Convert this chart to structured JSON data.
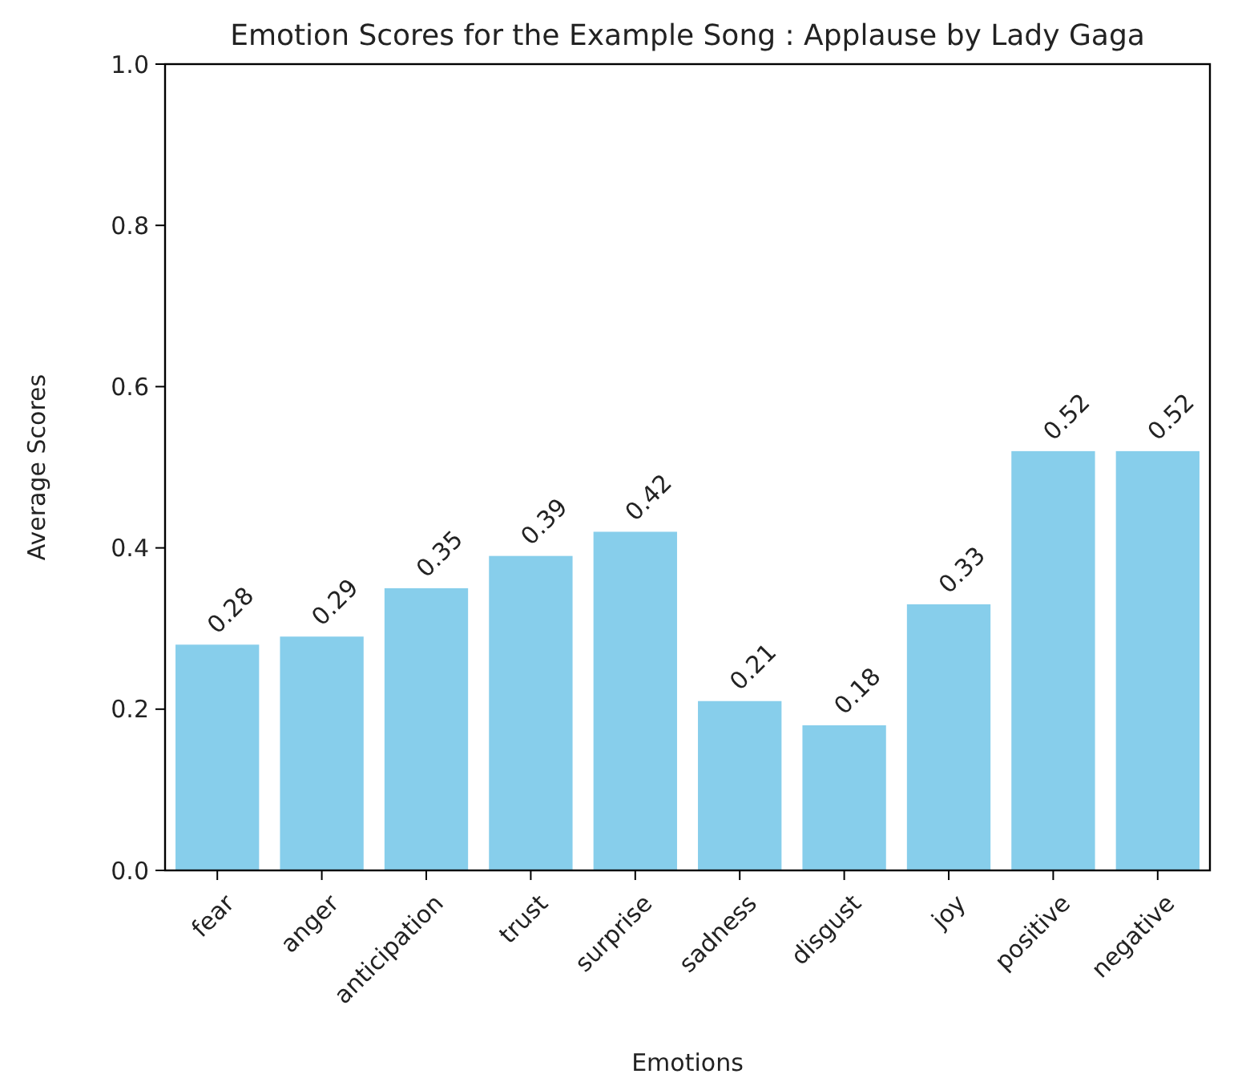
{
  "chart_data": {
    "type": "bar",
    "title": "Emotion Scores for the Example Song : Applause by Lady Gaga",
    "xlabel": "Emotions",
    "ylabel": "Average Scores",
    "categories": [
      "fear",
      "anger",
      "anticipation",
      "trust",
      "surprise",
      "sadness",
      "disgust",
      "joy",
      "positive",
      "negative"
    ],
    "values": [
      0.28,
      0.29,
      0.35,
      0.39,
      0.42,
      0.21,
      0.18,
      0.33,
      0.52,
      0.52
    ],
    "color": "#87ceeb",
    "ylim": [
      0,
      1
    ],
    "yticks": [
      {
        "value": 0,
        "label": "0.0"
      },
      0.2,
      0.4,
      0.6,
      0.8,
      {
        "value": 1,
        "label": "1.0"
      }
    ],
    "data_labels": true
  }
}
